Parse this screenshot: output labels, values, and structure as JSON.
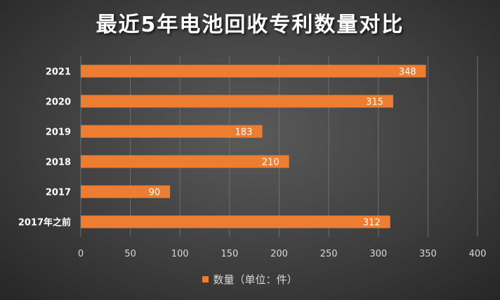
{
  "chart_data": {
    "type": "bar",
    "orientation": "horizontal",
    "title": "最近5年电池回收专利数量对比",
    "categories": [
      "2021",
      "2020",
      "2019",
      "2018",
      "2017",
      "2017年之前"
    ],
    "series": [
      {
        "name": "数量（单位：件）",
        "values": [
          348,
          315,
          183,
          210,
          90,
          312
        ],
        "color": "#ed7d31"
      }
    ],
    "xlim": [
      0,
      400
    ],
    "xticks": [
      0,
      50,
      100,
      150,
      200,
      250,
      300,
      350,
      400
    ],
    "xlabel": "",
    "ylabel": "",
    "grid": "vertical",
    "legend": "bottom",
    "data_labels": true
  }
}
